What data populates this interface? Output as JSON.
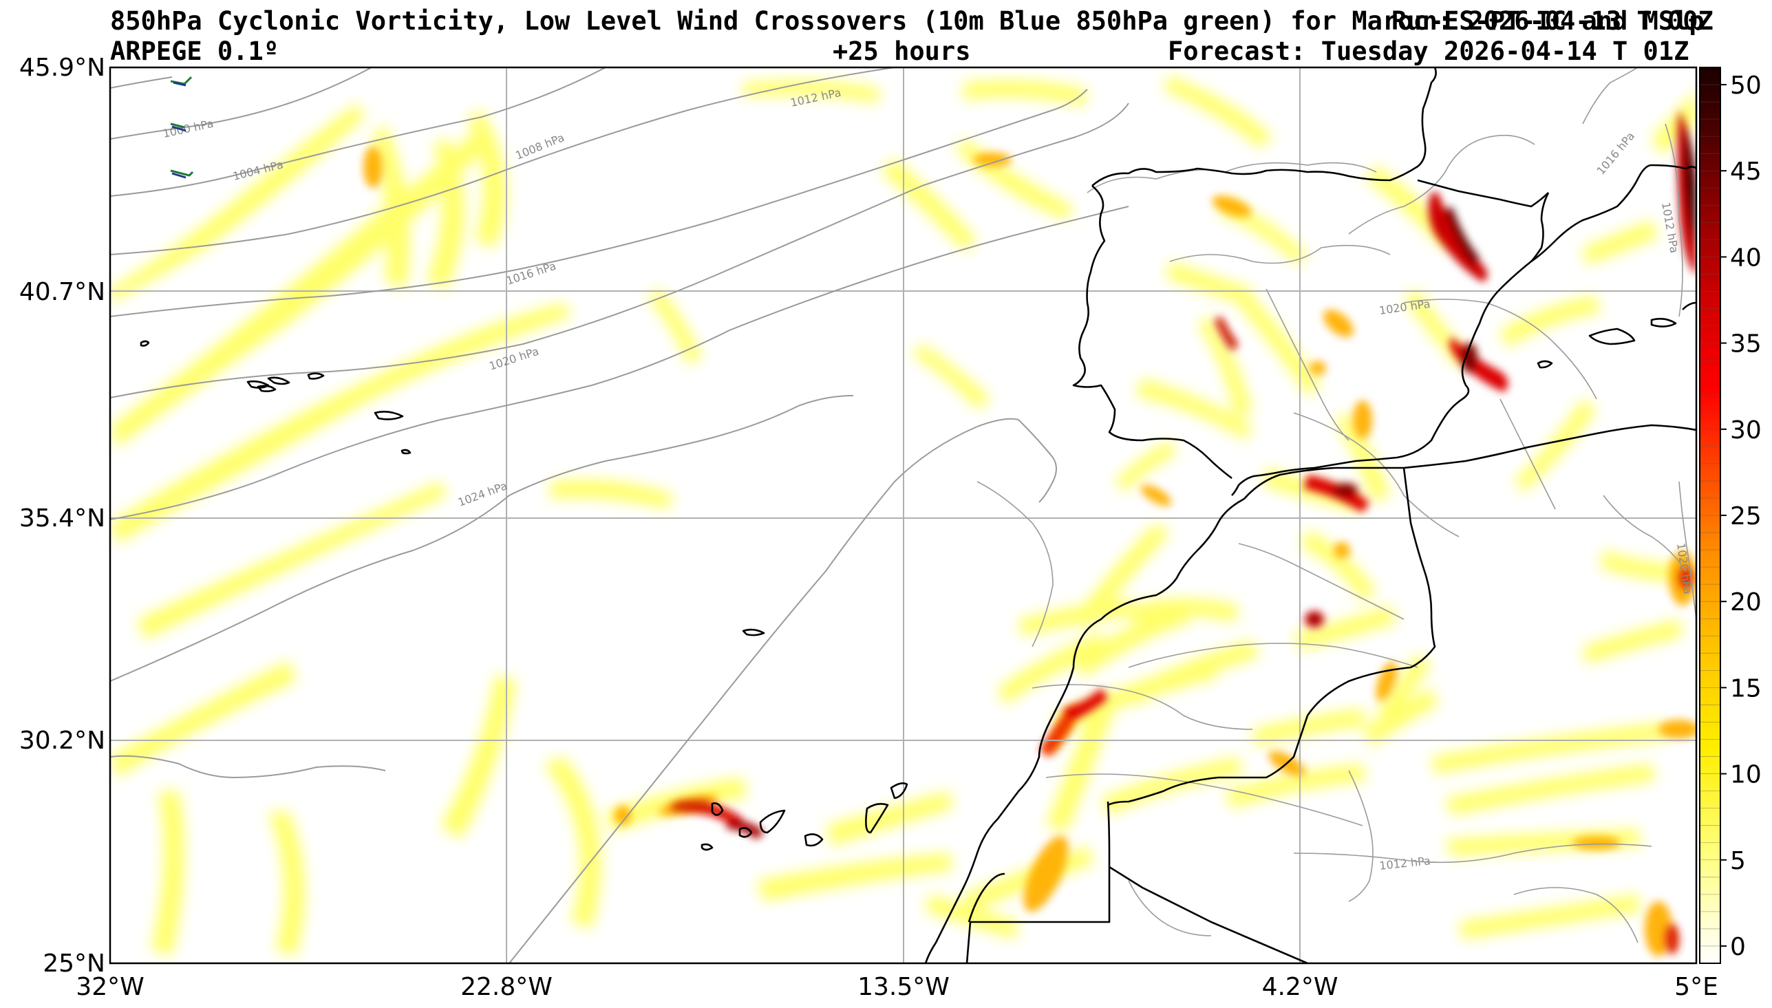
{
  "header": {
    "title_line1": "850hPa Cyclonic Vorticity, Low Level Wind Crossovers (10m Blue 850hPa green) for Maroc-ES-PT-IC and MSlp",
    "run_overlay": "Run: 2026-04-13 T 00Z",
    "model": "ARPEGE 0.1º",
    "lead_time": "+25 hours",
    "forecast": "Forecast: Tuesday 2026-04-14 T 01Z"
  },
  "map": {
    "lat_labels": [
      "45.9°N",
      "40.7°N",
      "35.4°N",
      "30.2°N",
      "25°N"
    ],
    "lon_labels": [
      "32°W",
      "22.8°W",
      "13.5°W",
      "4.2°W",
      "5°E"
    ],
    "lat_range": [
      25.0,
      45.9
    ],
    "lon_range": [
      -32.0,
      5.0
    ],
    "grid": true
  },
  "isobars": [
    {
      "label": "1000 hPa"
    },
    {
      "label": "1004 hPa"
    },
    {
      "label": "1008 hPa"
    },
    {
      "label": "1012 hPa"
    },
    {
      "label": "1016 hPa"
    },
    {
      "label": "1020 hPa"
    },
    {
      "label": "1024 hPa"
    },
    {
      "label": "1020 hPa"
    },
    {
      "label": "1012 hPa"
    },
    {
      "label": "1016 hPa"
    },
    {
      "label": "1012 hPa"
    },
    {
      "label": "1020 hPa"
    }
  ],
  "colorbar": {
    "ticks": [
      "0",
      "5",
      "10",
      "15",
      "20",
      "25",
      "30",
      "35",
      "40",
      "45",
      "50"
    ],
    "min": -1,
    "max": 51,
    "colors": [
      "#ffffff",
      "#ffff66",
      "#ffee00",
      "#ffcc00",
      "#ff9900",
      "#ff5500",
      "#ff0000",
      "#cc0000",
      "#880000",
      "#440000",
      "#1a0000"
    ]
  },
  "colors": {
    "isobar": "#9a9a9a",
    "coast": "#000000",
    "grid": "#b0b0b0"
  }
}
